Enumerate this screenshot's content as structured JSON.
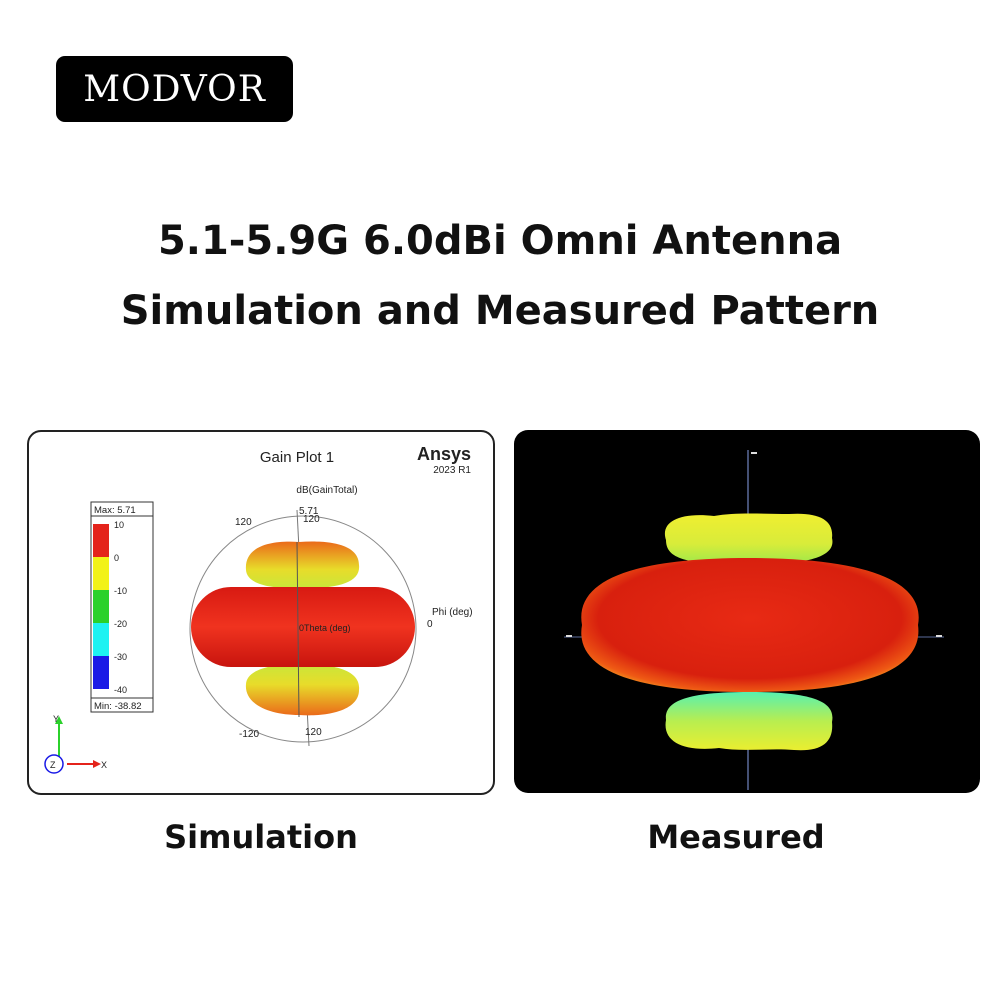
{
  "brand": {
    "logo_text": "MODVOR"
  },
  "heading": {
    "line1": "5.1-5.9G 6.0dBi Omni Antenna",
    "line2": "Simulation and Measured Pattern"
  },
  "simulation": {
    "plot_title": "Gain Plot 1",
    "vendor": "Ansys",
    "version": "2023 R1",
    "quantity_label": "dB(GainTotal)",
    "legend": {
      "max_label": "Max: 5.71",
      "min_label": "Min: -38.82",
      "ticks": [
        "10",
        "0",
        "-10",
        "-20",
        "-30",
        "-40"
      ]
    },
    "annotations": {
      "top_value": "5.71",
      "top_angle_left": "120",
      "top_angle_right": "120",
      "bottom_angle_left": "-120",
      "bottom_angle_right": "120",
      "phi_label": "Phi (deg)",
      "phi_value": "0",
      "theta_label": "0Theta (deg)"
    },
    "axes": {
      "y": "Y",
      "z": "Z",
      "x": "X"
    },
    "caption": "Simulation"
  },
  "measured": {
    "caption": "Measured"
  },
  "colors": {
    "red": "#e4231b",
    "yellow": "#f2f218",
    "green": "#2bd12b",
    "cyan": "#1ef2f2",
    "blue": "#1a1ae6"
  }
}
